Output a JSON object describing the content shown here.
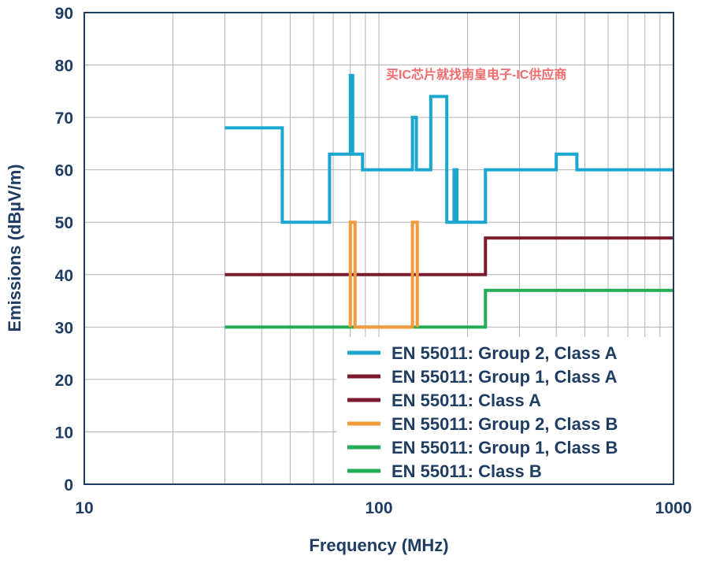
{
  "chart_data": {
    "type": "line",
    "xlabel": "Frequency (MHz)",
    "ylabel": "Emissions (dBµV/m)",
    "x_scale": "log",
    "xlim": [
      10,
      1000
    ],
    "ylim": [
      0,
      90
    ],
    "x_ticks": [
      10,
      100,
      1000
    ],
    "y_ticks": [
      0,
      10,
      20,
      30,
      40,
      50,
      60,
      70,
      80,
      90
    ],
    "grid": true,
    "legend_position": "bottom-right",
    "watermark": "买IC芯片就找南皇电子-IC供应商",
    "series": [
      {
        "name": "EN 55011: Group 2, Class A",
        "color": "#1ba6d0",
        "x": [
          30,
          47,
          47,
          68,
          68,
          80,
          80,
          81.5,
          81.5,
          83,
          83,
          88,
          88,
          130,
          130,
          134,
          134,
          150,
          150,
          170,
          170,
          180,
          180,
          184,
          184,
          230,
          230,
          400,
          400,
          470,
          470,
          1000
        ],
        "y": [
          68,
          68,
          50,
          50,
          63,
          63,
          78,
          78,
          63,
          63,
          63,
          63,
          60,
          60,
          70,
          70,
          60,
          60,
          74,
          74,
          50,
          50,
          60,
          60,
          50,
          50,
          60,
          60,
          63,
          63,
          60,
          60
        ]
      },
      {
        "name": "EN 55011: Group 1, Class A",
        "color": "#7a1a2c",
        "x": [
          30,
          230,
          230,
          1000
        ],
        "y": [
          40,
          40,
          47,
          47
        ]
      },
      {
        "name": "EN 55011: Class A",
        "color": "#7a1a2c",
        "x": [],
        "y": []
      },
      {
        "name": "EN 55011: Group 2, Class B",
        "color": "#f39a3c",
        "x": [
          80,
          80,
          83,
          83,
          130,
          130,
          135,
          135
        ],
        "y": [
          30,
          50,
          50,
          30,
          30,
          50,
          50,
          30
        ]
      },
      {
        "name": "EN 55011: Group 1, Class B",
        "color": "#22ad54",
        "x": [
          30,
          230,
          230,
          1000
        ],
        "y": [
          30,
          30,
          37,
          37
        ]
      },
      {
        "name": "EN 55011: Class B",
        "color": "#22ad54",
        "x": [],
        "y": []
      }
    ]
  }
}
